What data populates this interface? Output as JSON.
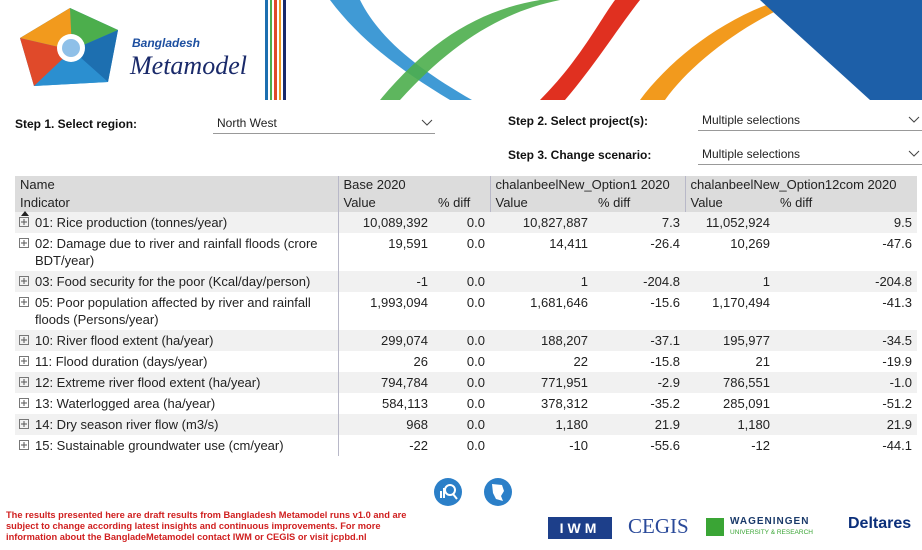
{
  "header": {
    "brand_line1": "Bangladesh",
    "brand_line2": "Metamodel"
  },
  "controls": [
    {
      "label": "Step 1. Select region:",
      "value": "North West"
    },
    {
      "label": "Step 2. Select project(s):",
      "value": "Multiple selections"
    },
    {
      "label": "Step 3. Change scenario:",
      "value": "Multiple selections"
    }
  ],
  "table": {
    "group_headers": [
      "Name",
      "Base 2020",
      "chalanbeelNew_Option1 2020",
      "chalanbeelNew_Option12com 2020"
    ],
    "sub_headers": [
      "Indicator",
      "Value",
      "% diff",
      "Value",
      "% diff",
      "Value",
      "% diff"
    ],
    "rows": [
      [
        "01: Rice production (tonnes/year)",
        "10,089,392",
        "0.0",
        "10,827,887",
        "7.3",
        "11,052,924",
        "9.5"
      ],
      [
        "02: Damage due to river and rainfall floods (crore BDT/year)",
        "19,591",
        "0.0",
        "14,411",
        "-26.4",
        "10,269",
        "-47.6"
      ],
      [
        "03: Food security for the poor (Kcal/day/person)",
        "-1",
        "0.0",
        "1",
        "-204.8",
        "1",
        "-204.8"
      ],
      [
        "05: Poor population affected by river and rainfall floods (Persons/year)",
        "1,993,094",
        "0.0",
        "1,681,646",
        "-15.6",
        "1,170,494",
        "-41.3"
      ],
      [
        "10: River flood extent (ha/year)",
        "299,074",
        "0.0",
        "188,207",
        "-37.1",
        "195,977",
        "-34.5"
      ],
      [
        "11: Flood duration (days/year)",
        "26",
        "0.0",
        "22",
        "-15.8",
        "21",
        "-19.9"
      ],
      [
        "12: Extreme river flood extent (ha/year)",
        "794,784",
        "0.0",
        "771,951",
        "-2.9",
        "786,551",
        "-1.0"
      ],
      [
        "13: Waterlogged area (ha/year)",
        "584,113",
        "0.0",
        "378,312",
        "-35.2",
        "285,091",
        "-51.2"
      ],
      [
        "14: Dry season river flow (m3/s)",
        "968",
        "0.0",
        "1,180",
        "21.9",
        "1,180",
        "21.9"
      ],
      [
        "15: Sustainable groundwater use (cm/year)",
        "-22",
        "0.0",
        "-10",
        "-55.6",
        "-12",
        "-44.1"
      ]
    ]
  },
  "footer": {
    "disclaimer": [
      "The results presented here are draft results from Bangladesh Metamodel runs v1.0 and are",
      "subject to change according latest insights and continuous improvements. For more",
      "information about the BangladeMetamodel contact IWM or CEGIS or visit jcpbd.nl"
    ],
    "logos": {
      "iwm": "IWM",
      "cegis": "CEGIS",
      "wageningen": "WAGENINGEN",
      "wageningen_sub": "UNIVERSITY & RESEARCH",
      "deltares": "Deltares"
    }
  }
}
